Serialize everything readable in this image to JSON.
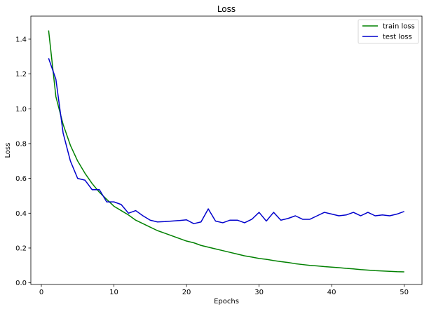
{
  "chart_data": {
    "type": "line",
    "title": "Loss",
    "xlabel": "Epochs",
    "ylabel": "Loss",
    "xlim": [
      -1.45,
      52.45
    ],
    "ylim": [
      -0.0095,
      1.5325
    ],
    "xticks": [
      0,
      10,
      20,
      30,
      40,
      50
    ],
    "yticks": [
      0.0,
      0.2,
      0.4,
      0.6,
      0.8,
      1.0,
      1.2,
      1.4
    ],
    "ytick_labels": [
      "0.0",
      "0.2",
      "0.4",
      "0.6",
      "0.8",
      "1.0",
      "1.2",
      "1.4"
    ],
    "grid": false,
    "legend_position": "top-right",
    "x": [
      1,
      2,
      3,
      4,
      5,
      6,
      7,
      8,
      9,
      10,
      11,
      12,
      13,
      14,
      15,
      16,
      17,
      18,
      19,
      20,
      21,
      22,
      23,
      24,
      25,
      26,
      27,
      28,
      29,
      30,
      31,
      32,
      33,
      34,
      35,
      36,
      37,
      38,
      39,
      40,
      41,
      42,
      43,
      44,
      45,
      46,
      47,
      48,
      49,
      50
    ],
    "series": [
      {
        "name": "train loss",
        "color": "#008000",
        "values": [
          1.45,
          1.07,
          0.91,
          0.79,
          0.7,
          0.63,
          0.57,
          0.52,
          0.48,
          0.44,
          0.415,
          0.39,
          0.36,
          0.34,
          0.32,
          0.3,
          0.285,
          0.27,
          0.255,
          0.24,
          0.23,
          0.215,
          0.205,
          0.195,
          0.185,
          0.175,
          0.165,
          0.155,
          0.148,
          0.14,
          0.135,
          0.128,
          0.122,
          0.117,
          0.11,
          0.105,
          0.1,
          0.097,
          0.093,
          0.09,
          0.087,
          0.083,
          0.08,
          0.076,
          0.073,
          0.07,
          0.068,
          0.066,
          0.064,
          0.063
        ]
      },
      {
        "name": "test loss",
        "color": "#0000cc",
        "values": [
          1.29,
          1.17,
          0.86,
          0.7,
          0.6,
          0.59,
          0.535,
          0.535,
          0.465,
          0.465,
          0.45,
          0.4,
          0.415,
          0.385,
          0.36,
          0.35,
          0.352,
          0.355,
          0.358,
          0.362,
          0.34,
          0.35,
          0.425,
          0.355,
          0.345,
          0.36,
          0.36,
          0.345,
          0.365,
          0.405,
          0.355,
          0.405,
          0.36,
          0.37,
          0.385,
          0.365,
          0.365,
          0.385,
          0.405,
          0.395,
          0.385,
          0.39,
          0.405,
          0.385,
          0.405,
          0.385,
          0.39,
          0.385,
          0.395,
          0.41
        ]
      }
    ]
  }
}
